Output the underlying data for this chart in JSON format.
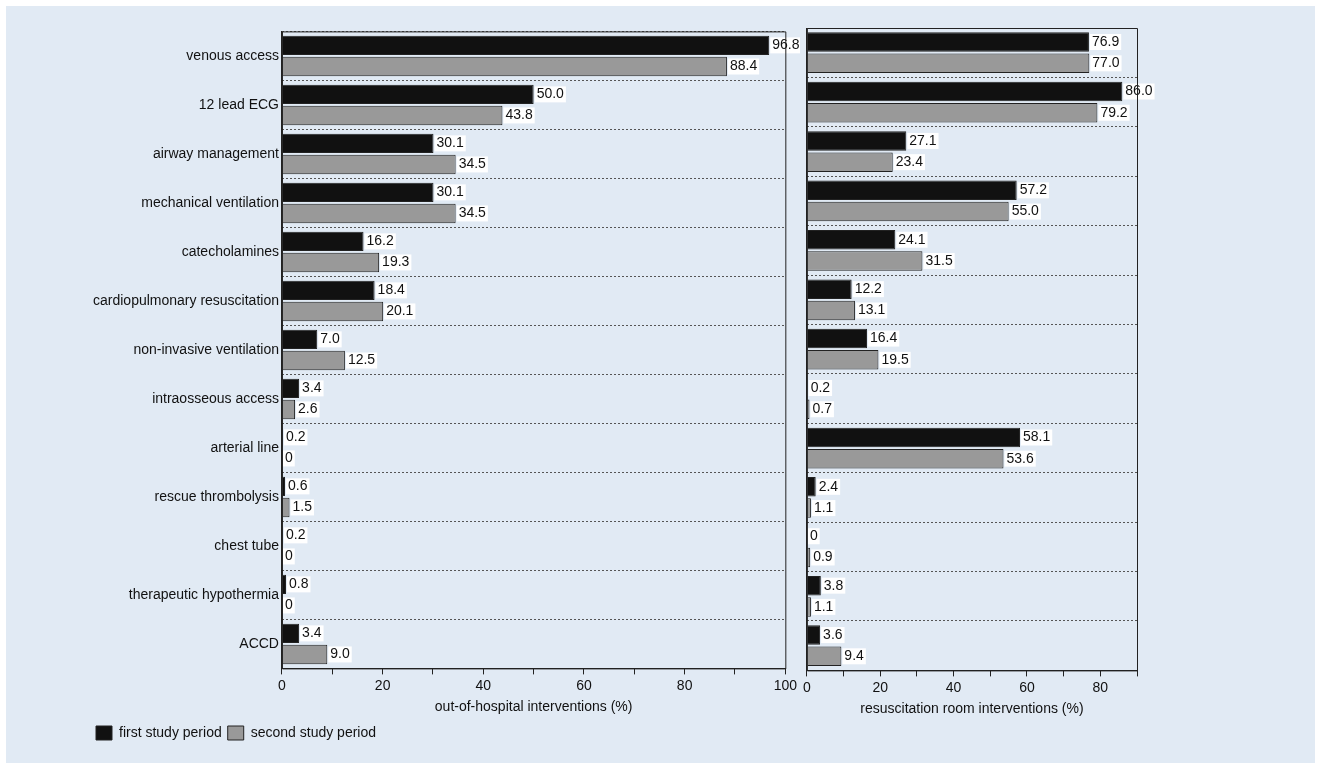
{
  "chart_data": [
    {
      "type": "bar",
      "orientation": "horizontal",
      "xlabel": "out-of-hospital interventions (%)",
      "categories": [
        "venous access",
        "12 lead ECG",
        "airway management",
        "mechanical ventilation",
        "catecholamines",
        "cardiopulmonary resuscitation",
        "non-invasive ventilation",
        "intraosseous access",
        "arterial line",
        "rescue thrombolysis",
        "chest tube",
        "therapeutic hypothermia",
        "ACCD"
      ],
      "series": [
        {
          "name": "first study period",
          "color": "#111111",
          "values": [
            96.8,
            50.0,
            30.1,
            30.1,
            16.2,
            18.4,
            7.0,
            3.4,
            0.2,
            0.6,
            0.2,
            0.8,
            3.4
          ],
          "value_labels": [
            "96.8",
            "50.0",
            "30.1",
            "30.1",
            "16.2",
            "18.4",
            "7.0",
            "3.4",
            "0.2",
            "0.6",
            "0.2",
            "0.8",
            "3.4"
          ]
        },
        {
          "name": "second study period",
          "color": "#999999",
          "values": [
            88.4,
            43.8,
            34.5,
            34.5,
            19.3,
            20.1,
            12.5,
            2.6,
            0,
            1.5,
            0,
            0,
            9.0
          ],
          "value_labels": [
            "88.4",
            "43.8",
            "34.5",
            "34.5",
            "19.3",
            "20.1",
            "12.5",
            "2.6",
            "0",
            "1.5",
            "0",
            "0",
            "9.0"
          ]
        }
      ],
      "xlim": [
        0,
        100
      ],
      "xticks": [
        0,
        {
          "value": 10,
          "label": null
        },
        20,
        {
          "value": 30,
          "label": null
        },
        40,
        {
          "value": 50,
          "label": null
        },
        60,
        {
          "value": 70,
          "label": null
        },
        80,
        {
          "value": 90,
          "label": null
        },
        100
      ],
      "grid": "y",
      "legend": "bottom left"
    },
    {
      "type": "bar",
      "orientation": "horizontal",
      "xlabel": "resuscitation room interventions (%)",
      "categories": [
        null,
        null,
        null,
        null,
        null,
        null,
        null,
        null,
        null,
        null,
        null,
        null,
        null
      ],
      "series": [
        {
          "color": "#111111",
          "values": [
            76.9,
            86.0,
            27.1,
            57.2,
            24.1,
            12.2,
            16.4,
            0.2,
            58.1,
            2.4,
            0,
            3.8,
            3.6
          ],
          "value_labels": [
            "76.9",
            "86.0",
            "27.1",
            "57.2",
            "24.1",
            "12.2",
            "16.4",
            "0.2",
            "58.1",
            "2.4",
            "0",
            "3.8",
            "3.6"
          ]
        },
        {
          "color": "#999999",
          "values": [
            77.0,
            79.2,
            23.4,
            55.0,
            31.5,
            13.1,
            19.5,
            0.7,
            53.6,
            1.1,
            0.9,
            1.1,
            9.4
          ],
          "value_labels": [
            "77.0",
            "79.2",
            "23.4",
            "55.0",
            "31.5",
            "13.1",
            "19.5",
            "0.7",
            "53.6",
            "1.1",
            "0.9",
            "1.1",
            "9.4"
          ]
        }
      ],
      "xlim": [
        0,
        90
      ],
      "xticks": [
        0,
        {
          "value": 10,
          "label": null
        },
        20,
        {
          "value": 30,
          "label": null
        },
        40,
        {
          "value": 50,
          "label": null
        },
        60,
        {
          "value": 70,
          "label": null
        },
        80,
        {
          "value": 90,
          "label": null
        }
      ],
      "grid": "y",
      "tick_labels": "x"
    }
  ]
}
